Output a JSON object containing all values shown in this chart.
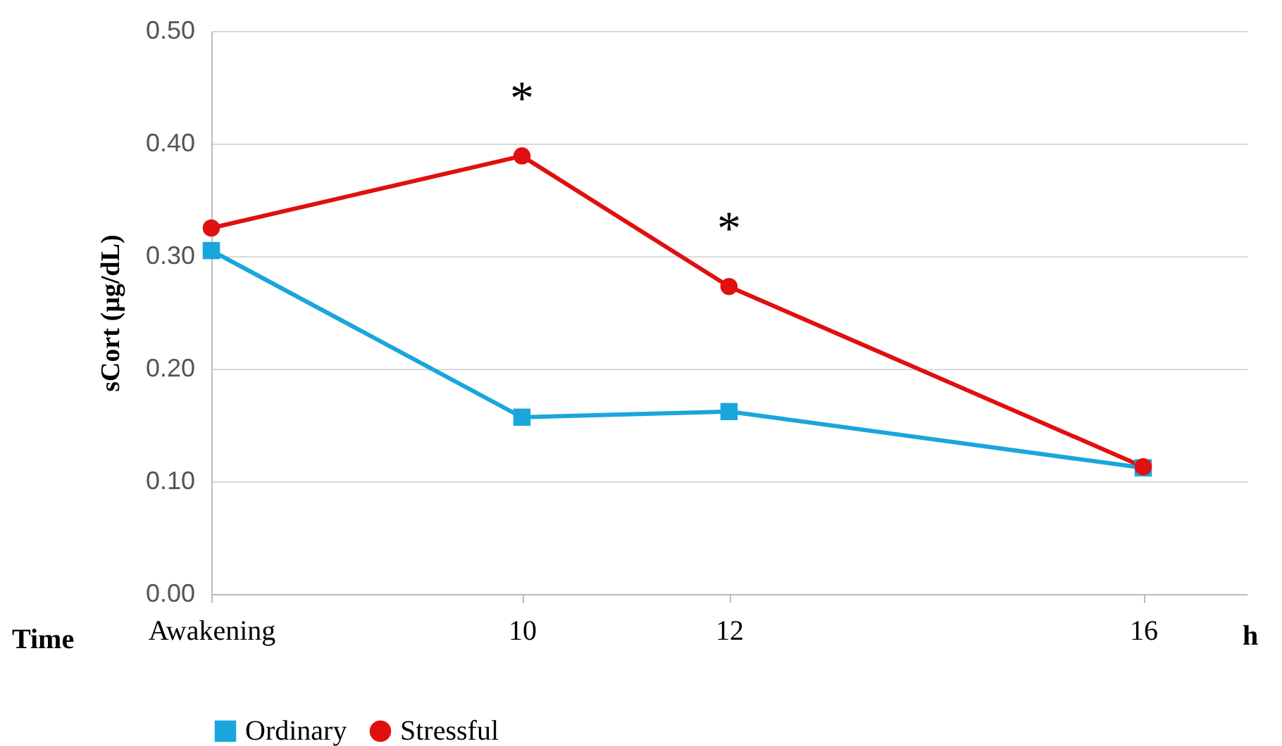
{
  "chart_data": {
    "type": "line",
    "xlabel": "Time",
    "ylabel": "sCort (µg/dL)",
    "x": [
      7,
      10,
      12,
      16
    ],
    "xlim": [
      7,
      17
    ],
    "xticks": [
      {
        "value": 7,
        "label": "Awakening"
      },
      10,
      12,
      16
    ],
    "ylim": [
      0,
      0.5
    ],
    "yticks": [
      {
        "value": 0,
        "label": "0.00"
      },
      {
        "value": 0.1,
        "label": "0.10"
      },
      {
        "value": 0.2,
        "label": "0.20"
      },
      {
        "value": 0.3,
        "label": "0.30"
      },
      {
        "value": 0.4,
        "label": "0.40"
      },
      {
        "value": 0.5,
        "label": "0.50"
      }
    ],
    "series": [
      {
        "name": "Ordinary",
        "color": "#1aa6dc",
        "marker": "square",
        "values": [
          0.305,
          0.157,
          0.162,
          0.112
        ]
      },
      {
        "name": "Stressful",
        "color": "#e01010",
        "marker": "circle",
        "values": [
          0.325,
          0.389,
          0.273,
          0.113
        ]
      }
    ],
    "annotations": [
      {
        "text": "*",
        "x": 10,
        "y": 0.389
      },
      {
        "text": "*",
        "x": 12,
        "y": 0.273
      },
      "h"
    ],
    "grid": "y",
    "legend": "bottom"
  }
}
